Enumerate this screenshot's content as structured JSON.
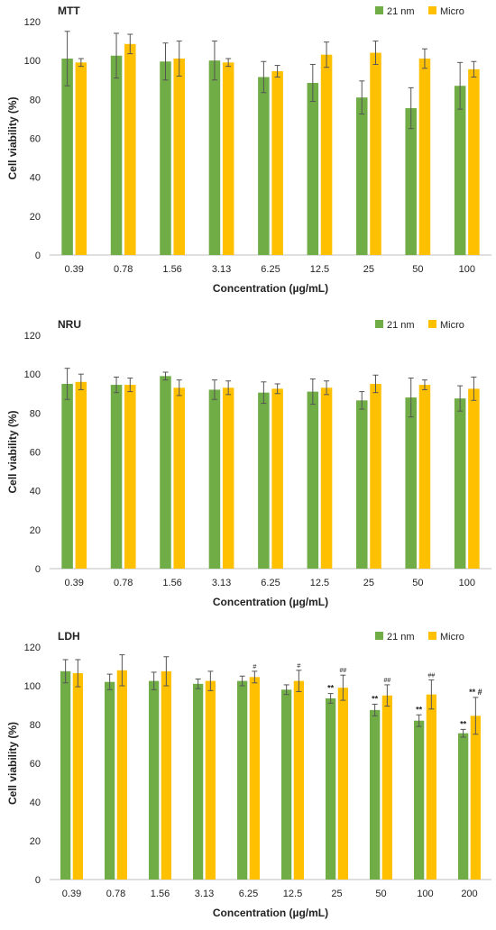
{
  "colors": {
    "nm21": "#70ad47",
    "micro": "#ffc000",
    "axis": "#bfbfbf",
    "text": "#222222",
    "error": "#555555"
  },
  "chart_data": [
    {
      "type": "bar",
      "title": "MTT",
      "xlabel": "Concentration (µg/mL)",
      "ylabel": "Cell viability (%)",
      "ylim": [
        0,
        120
      ],
      "yticks": [
        0,
        20,
        40,
        60,
        80,
        100,
        120
      ],
      "legend_position": "top-right",
      "categories": [
        "0.39",
        "0.78",
        "1.56",
        "3.13",
        "6.25",
        "12.5",
        "25",
        "50",
        "100"
      ],
      "series": [
        {
          "name": "21 nm",
          "values": [
            101,
            102.5,
            99.5,
            100,
            91.5,
            88.5,
            81,
            75.5,
            87
          ],
          "errors": [
            14,
            11.5,
            9.5,
            10,
            8,
            9.5,
            8.5,
            10.5,
            12
          ],
          "labels": [
            "",
            "",
            "",
            "",
            "",
            "",
            "",
            "",
            ""
          ]
        },
        {
          "name": "Micro",
          "values": [
            99,
            108.5,
            101,
            99,
            94.5,
            103,
            104,
            101,
            95.5
          ],
          "errors": [
            2,
            5,
            9,
            2,
            3,
            6.5,
            6,
            5,
            4
          ],
          "labels": [
            "",
            "",
            "",
            "",
            "",
            "",
            "",
            "",
            ""
          ]
        }
      ]
    },
    {
      "type": "bar",
      "title": "NRU",
      "xlabel": "Concentration (µg/mL)",
      "ylabel": "Cell viability (%)",
      "ylim": [
        0,
        120
      ],
      "yticks": [
        0,
        20,
        40,
        60,
        80,
        100,
        120
      ],
      "legend_position": "top-right",
      "categories": [
        "0.39",
        "0.78",
        "1.56",
        "3.13",
        "6.25",
        "12.5",
        "25",
        "50",
        "100"
      ],
      "series": [
        {
          "name": "21 nm",
          "values": [
            95,
            94.5,
            99,
            92,
            90.5,
            91,
            86.5,
            88,
            87.5
          ],
          "errors": [
            8,
            4,
            2,
            5,
            5.5,
            6.5,
            4.5,
            10,
            6.5
          ],
          "labels": [
            "",
            "",
            "",
            "",
            "",
            "",
            "",
            "",
            ""
          ]
        },
        {
          "name": "Micro",
          "values": [
            96,
            94.5,
            93,
            93,
            92.5,
            93,
            95,
            94.5,
            92.5
          ],
          "errors": [
            4,
            3.5,
            4,
            3.5,
            2.5,
            3.5,
            4.5,
            2.5,
            6
          ],
          "labels": [
            "",
            "",
            "",
            "",
            "",
            "",
            "",
            "",
            ""
          ]
        }
      ]
    },
    {
      "type": "bar",
      "title": "LDH",
      "xlabel": "Concentration (µg/mL)",
      "ylabel": "Cell viability (%)",
      "ylim": [
        0,
        120
      ],
      "yticks": [
        0,
        20,
        40,
        60,
        80,
        100,
        120
      ],
      "legend_position": "top-right",
      "categories": [
        "0.39",
        "0.78",
        "1.56",
        "3.13",
        "6.25",
        "12.5",
        "25",
        "50",
        "100",
        "200"
      ],
      "series": [
        {
          "name": "21 nm",
          "values": [
            107.5,
            102,
            102.5,
            101,
            102.5,
            98,
            93.5,
            87.5,
            82,
            75.5
          ],
          "errors": [
            6,
            4,
            4.5,
            2.5,
            2.5,
            2.5,
            2.5,
            3,
            3,
            2
          ],
          "labels": [
            "",
            "",
            "",
            "",
            "",
            "",
            "**",
            "**",
            "**",
            "**"
          ]
        },
        {
          "name": "Micro",
          "values": [
            106.5,
            108,
            107.5,
            102.5,
            104.5,
            102.5,
            99,
            95,
            95.5,
            84.5
          ],
          "errors": [
            7,
            8,
            7.5,
            5,
            3,
            5.5,
            6.5,
            5.5,
            7.5,
            9.5
          ],
          "labels": [
            "",
            "",
            "",
            "",
            "#",
            "#",
            "##",
            "##",
            "##",
            "** #"
          ]
        }
      ]
    }
  ]
}
